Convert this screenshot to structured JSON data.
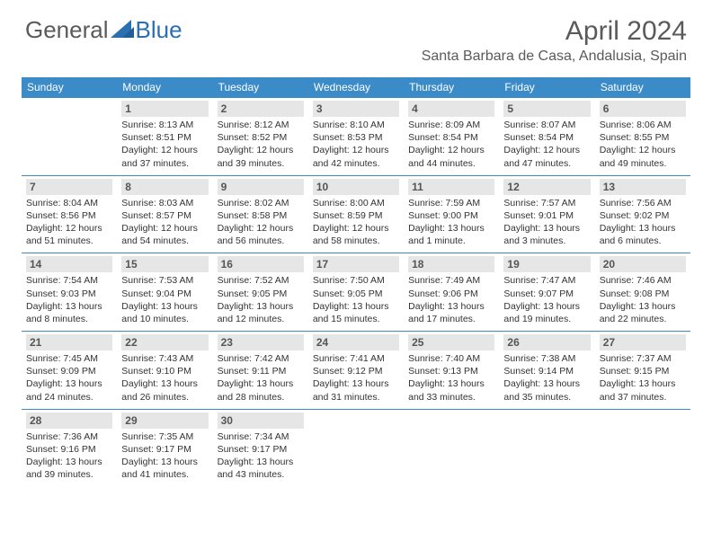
{
  "brand": {
    "part1": "General",
    "part2": "Blue"
  },
  "title": "April 2024",
  "location": "Santa Barbara de Casa, Andalusia, Spain",
  "colors": {
    "header_bg": "#3b8bc9",
    "header_text": "#ffffff",
    "daynum_bg": "#e6e6e6",
    "border": "#3b8bc9",
    "text": "#333333",
    "title_text": "#5a5a5a",
    "logo_blue": "#2b6fb0"
  },
  "day_headers": [
    "Sunday",
    "Monday",
    "Tuesday",
    "Wednesday",
    "Thursday",
    "Friday",
    "Saturday"
  ],
  "weeks": [
    [
      null,
      {
        "n": "1",
        "sr": "8:13 AM",
        "ss": "8:51 PM",
        "dl": "12 hours and 37 minutes."
      },
      {
        "n": "2",
        "sr": "8:12 AM",
        "ss": "8:52 PM",
        "dl": "12 hours and 39 minutes."
      },
      {
        "n": "3",
        "sr": "8:10 AM",
        "ss": "8:53 PM",
        "dl": "12 hours and 42 minutes."
      },
      {
        "n": "4",
        "sr": "8:09 AM",
        "ss": "8:54 PM",
        "dl": "12 hours and 44 minutes."
      },
      {
        "n": "5",
        "sr": "8:07 AM",
        "ss": "8:54 PM",
        "dl": "12 hours and 47 minutes."
      },
      {
        "n": "6",
        "sr": "8:06 AM",
        "ss": "8:55 PM",
        "dl": "12 hours and 49 minutes."
      }
    ],
    [
      {
        "n": "7",
        "sr": "8:04 AM",
        "ss": "8:56 PM",
        "dl": "12 hours and 51 minutes."
      },
      {
        "n": "8",
        "sr": "8:03 AM",
        "ss": "8:57 PM",
        "dl": "12 hours and 54 minutes."
      },
      {
        "n": "9",
        "sr": "8:02 AM",
        "ss": "8:58 PM",
        "dl": "12 hours and 56 minutes."
      },
      {
        "n": "10",
        "sr": "8:00 AM",
        "ss": "8:59 PM",
        "dl": "12 hours and 58 minutes."
      },
      {
        "n": "11",
        "sr": "7:59 AM",
        "ss": "9:00 PM",
        "dl": "13 hours and 1 minute."
      },
      {
        "n": "12",
        "sr": "7:57 AM",
        "ss": "9:01 PM",
        "dl": "13 hours and 3 minutes."
      },
      {
        "n": "13",
        "sr": "7:56 AM",
        "ss": "9:02 PM",
        "dl": "13 hours and 6 minutes."
      }
    ],
    [
      {
        "n": "14",
        "sr": "7:54 AM",
        "ss": "9:03 PM",
        "dl": "13 hours and 8 minutes."
      },
      {
        "n": "15",
        "sr": "7:53 AM",
        "ss": "9:04 PM",
        "dl": "13 hours and 10 minutes."
      },
      {
        "n": "16",
        "sr": "7:52 AM",
        "ss": "9:05 PM",
        "dl": "13 hours and 12 minutes."
      },
      {
        "n": "17",
        "sr": "7:50 AM",
        "ss": "9:05 PM",
        "dl": "13 hours and 15 minutes."
      },
      {
        "n": "18",
        "sr": "7:49 AM",
        "ss": "9:06 PM",
        "dl": "13 hours and 17 minutes."
      },
      {
        "n": "19",
        "sr": "7:47 AM",
        "ss": "9:07 PM",
        "dl": "13 hours and 19 minutes."
      },
      {
        "n": "20",
        "sr": "7:46 AM",
        "ss": "9:08 PM",
        "dl": "13 hours and 22 minutes."
      }
    ],
    [
      {
        "n": "21",
        "sr": "7:45 AM",
        "ss": "9:09 PM",
        "dl": "13 hours and 24 minutes."
      },
      {
        "n": "22",
        "sr": "7:43 AM",
        "ss": "9:10 PM",
        "dl": "13 hours and 26 minutes."
      },
      {
        "n": "23",
        "sr": "7:42 AM",
        "ss": "9:11 PM",
        "dl": "13 hours and 28 minutes."
      },
      {
        "n": "24",
        "sr": "7:41 AM",
        "ss": "9:12 PM",
        "dl": "13 hours and 31 minutes."
      },
      {
        "n": "25",
        "sr": "7:40 AM",
        "ss": "9:13 PM",
        "dl": "13 hours and 33 minutes."
      },
      {
        "n": "26",
        "sr": "7:38 AM",
        "ss": "9:14 PM",
        "dl": "13 hours and 35 minutes."
      },
      {
        "n": "27",
        "sr": "7:37 AM",
        "ss": "9:15 PM",
        "dl": "13 hours and 37 minutes."
      }
    ],
    [
      {
        "n": "28",
        "sr": "7:36 AM",
        "ss": "9:16 PM",
        "dl": "13 hours and 39 minutes."
      },
      {
        "n": "29",
        "sr": "7:35 AM",
        "ss": "9:17 PM",
        "dl": "13 hours and 41 minutes."
      },
      {
        "n": "30",
        "sr": "7:34 AM",
        "ss": "9:17 PM",
        "dl": "13 hours and 43 minutes."
      },
      null,
      null,
      null,
      null
    ]
  ],
  "labels": {
    "sunrise": "Sunrise:",
    "sunset": "Sunset:",
    "daylight": "Daylight:"
  }
}
